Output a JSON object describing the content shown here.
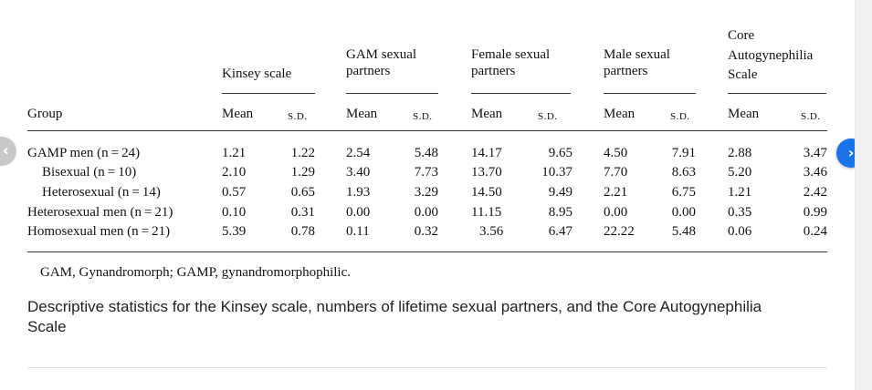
{
  "table": {
    "groups": [
      {
        "lines": [
          "Kinsey scale"
        ]
      },
      {
        "lines": [
          "GAM sexual",
          "partners"
        ]
      },
      {
        "lines": [
          "Female sexual",
          "partners"
        ]
      },
      {
        "lines": [
          "Male sexual",
          "partners"
        ]
      },
      {
        "lines": [
          "Core",
          "Autogynephilia",
          "Scale"
        ]
      }
    ],
    "group_label": "Group",
    "mean_label": "Mean",
    "sd_label": "S.D.",
    "rows": [
      {
        "label": "GAMP men  (n = 24)",
        "values": [
          "1.21",
          "1.22",
          "2.54",
          "5.48",
          "14.17",
          "9.65",
          "4.50",
          "7.91",
          "2.88",
          "3.47"
        ]
      },
      {
        "label": "Bisexual (n = 10)",
        "values": [
          "2.10",
          "1.29",
          "3.40",
          "7.73",
          "13.70",
          "10.37",
          "7.70",
          "8.63",
          "5.20",
          "3.46"
        ]
      },
      {
        "label": "Heterosexual  (n = 14)",
        "values": [
          "0.57",
          "0.65",
          "1.93",
          "3.29",
          "14.50",
          "9.49",
          "2.21",
          "6.75",
          "1.21",
          "2.42"
        ]
      },
      {
        "label": "Heterosexual men (n = 21)",
        "values": [
          "0.10",
          "0.31",
          "0.00",
          "0.00",
          "11.15",
          "8.95",
          "0.00",
          "0.00",
          "0.35",
          "0.99"
        ]
      },
      {
        "label": "Homosexual men (n = 21)",
        "values": [
          "5.39",
          "0.78",
          "0.11",
          "0.32",
          "3.56",
          "6.47",
          "22.22",
          "5.48",
          "0.06",
          "0.24"
        ]
      }
    ]
  },
  "note": "GAM, Gynandromorph; GAMP, gynandromorphophilic.",
  "caption": "Descriptive statistics for the Kinsey scale, numbers of lifetime sexual partners, and the Core Autogynephilia Scale",
  "nav": {
    "prev": "‹",
    "next": "›"
  }
}
